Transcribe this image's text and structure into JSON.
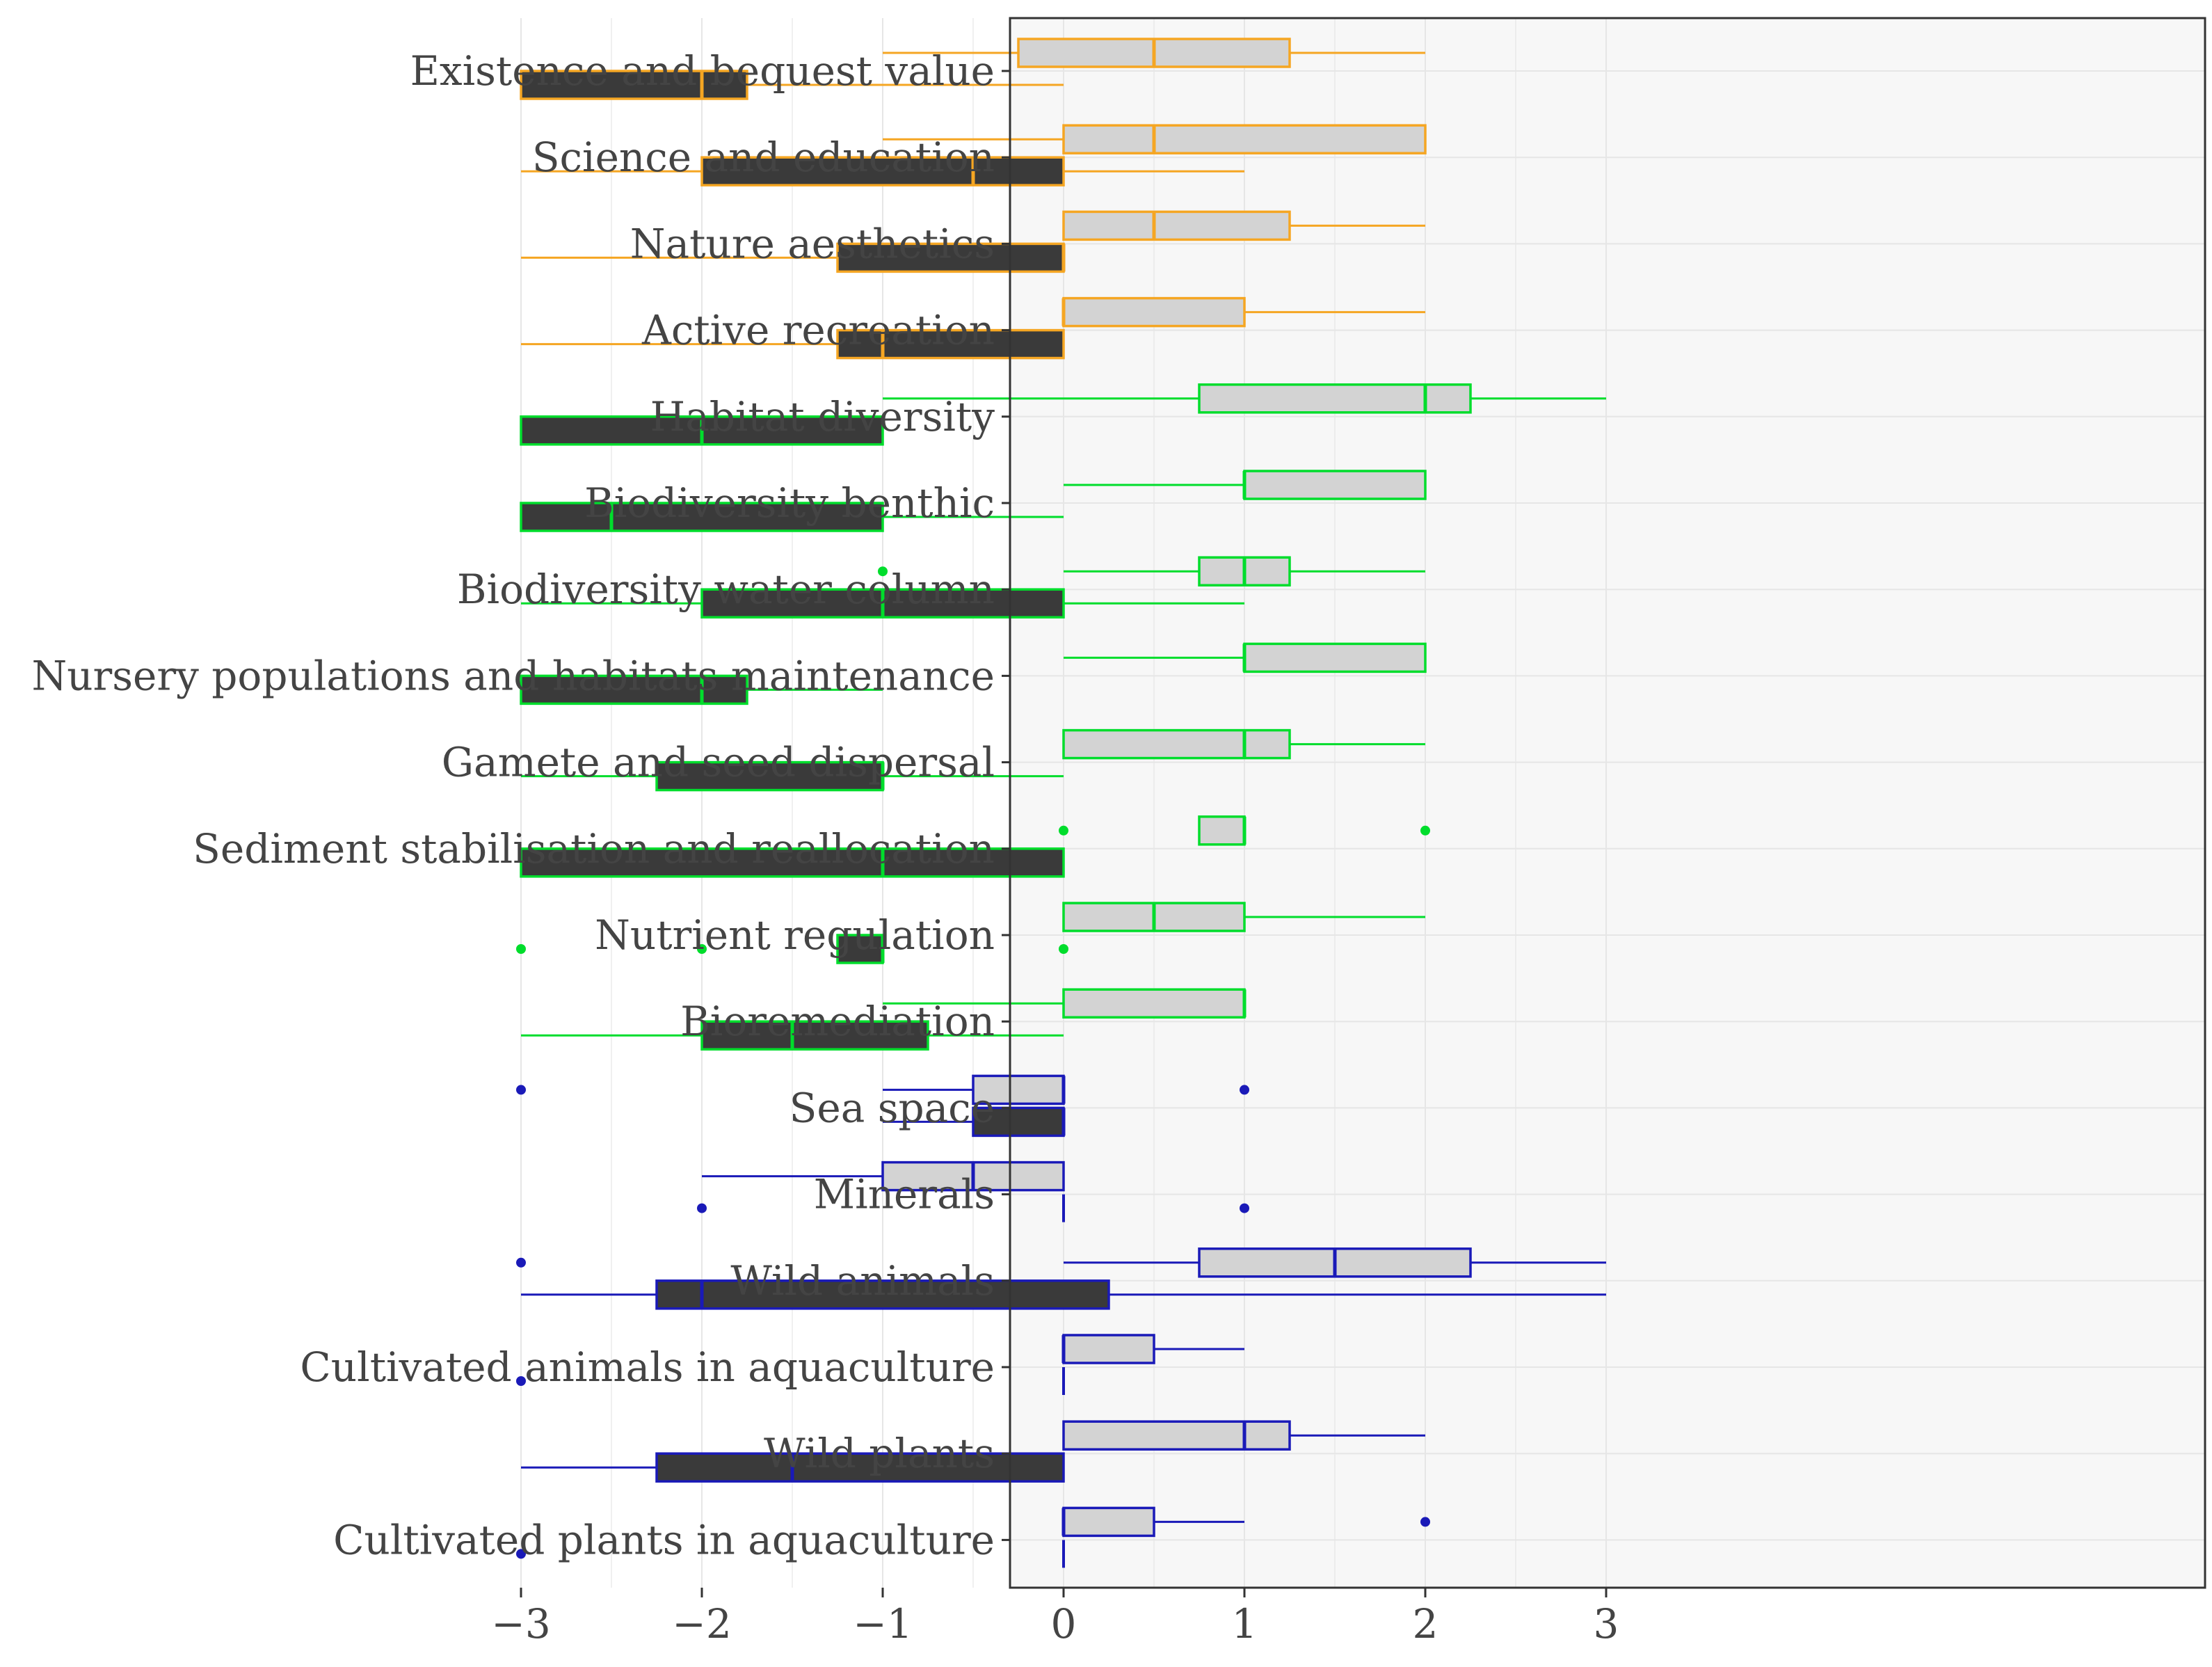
{
  "colors": {
    "panel_bg": "#f7f7f7",
    "grid": "#e6e6e6",
    "frame": "#333333",
    "axis_text": "#444444",
    "positive_fill": "#d3d3d3",
    "negative_fill": "#3a3a3a",
    "group_colors": {
      "cultural": "#f5a623",
      "regulating": "#00dd2c",
      "provisioning": "#1a1ab8"
    }
  },
  "chart_data": {
    "type": "boxplot",
    "orientation": "horizontal",
    "xlim": [
      -3.3,
      3.3
    ],
    "x_ticks": [
      -3,
      -2,
      -1,
      0,
      1,
      2,
      3
    ],
    "x_tick_labels": [
      "−3",
      "−2",
      "−1",
      "0",
      "1",
      "2",
      "3"
    ],
    "grid": true,
    "categories": [
      "Existence and bequest value",
      "Science and education",
      "Nature aesthetics",
      "Active recreation",
      "Habitat diversity",
      "Biodiversity benthic",
      "Biodiversity water column",
      "Nursery populations and habitats maintenance",
      "Gamete and seed dispersal",
      "Sediment stabilisation and reallocation",
      "Nutrient regulation",
      "Bioremediation",
      "Sea space",
      "Minerals",
      "Wild animals",
      "Cultivated animals in aquaculture",
      "Wild plants",
      "Cultivated plants in aquaculture"
    ],
    "groups": [
      "cultural",
      "cultural",
      "cultural",
      "cultural",
      "regulating",
      "regulating",
      "regulating",
      "regulating",
      "regulating",
      "regulating",
      "regulating",
      "regulating",
      "provisioning",
      "provisioning",
      "provisioning",
      "provisioning",
      "provisioning",
      "provisioning"
    ],
    "positive_boxes": [
      {
        "wmin": -1,
        "q1": -0.25,
        "median": 0.5,
        "q3": 1.25,
        "wmax": 2,
        "outliers": []
      },
      {
        "wmin": -1,
        "q1": 0,
        "median": 0.5,
        "q3": 2,
        "wmax": 2,
        "outliers": []
      },
      {
        "wmin": 0,
        "q1": 0,
        "median": 0.5,
        "q3": 1.25,
        "wmax": 2,
        "outliers": []
      },
      {
        "wmin": 0,
        "q1": 0,
        "median": 0,
        "q3": 1,
        "wmax": 2,
        "outliers": []
      },
      {
        "wmin": -1,
        "q1": 0.75,
        "median": 2,
        "q3": 2.25,
        "wmax": 3,
        "outliers": []
      },
      {
        "wmin": 0,
        "q1": 1,
        "median": 1,
        "q3": 2,
        "wmax": 2,
        "outliers": []
      },
      {
        "wmin": 0,
        "q1": 0.75,
        "median": 1,
        "q3": 1.25,
        "wmax": 2,
        "outliers": [
          -1
        ]
      },
      {
        "wmin": 0,
        "q1": 1,
        "median": 1,
        "q3": 2,
        "wmax": 2,
        "outliers": []
      },
      {
        "wmin": 0,
        "q1": 0,
        "median": 1,
        "q3": 1.25,
        "wmax": 2,
        "outliers": []
      },
      {
        "wmin": 0.75,
        "q1": 0.75,
        "median": 1,
        "q3": 1,
        "wmax": 1,
        "outliers": [
          0,
          2
        ]
      },
      {
        "wmin": 0,
        "q1": 0,
        "median": 0.5,
        "q3": 1,
        "wmax": 2,
        "outliers": []
      },
      {
        "wmin": -1,
        "q1": 0,
        "median": 1,
        "q3": 1,
        "wmax": 1,
        "outliers": []
      },
      {
        "wmin": -1,
        "q1": -0.5,
        "median": 0,
        "q3": 0,
        "wmax": 0,
        "outliers": [
          -3,
          1
        ]
      },
      {
        "wmin": -2,
        "q1": -1,
        "median": -0.5,
        "q3": 0,
        "wmax": 0,
        "outliers": []
      },
      {
        "wmin": 0,
        "q1": 0.75,
        "median": 1.5,
        "q3": 2.25,
        "wmax": 3,
        "outliers": [
          -3
        ]
      },
      {
        "wmin": 0,
        "q1": 0,
        "median": 0,
        "q3": 0.5,
        "wmax": 1,
        "outliers": []
      },
      {
        "wmin": 0,
        "q1": 0,
        "median": 1,
        "q3": 1.25,
        "wmax": 2,
        "outliers": []
      },
      {
        "wmin": 0,
        "q1": 0,
        "median": 0,
        "q3": 0.5,
        "wmax": 1,
        "outliers": [
          2
        ]
      }
    ],
    "negative_boxes": [
      {
        "wmin": -3,
        "q1": -3,
        "median": -2,
        "q3": -1.75,
        "wmax": 0,
        "outliers": []
      },
      {
        "wmin": -3,
        "q1": -2,
        "median": -0.5,
        "q3": 0,
        "wmax": 1,
        "outliers": []
      },
      {
        "wmin": -3,
        "q1": -1.25,
        "median": 0,
        "q3": 0,
        "wmax": 0,
        "outliers": []
      },
      {
        "wmin": -3,
        "q1": -1.25,
        "median": -1,
        "q3": 0,
        "wmax": 0,
        "outliers": []
      },
      {
        "wmin": -3,
        "q1": -3,
        "median": -2,
        "q3": -1,
        "wmax": -1,
        "outliers": []
      },
      {
        "wmin": -3,
        "q1": -3,
        "median": -2.5,
        "q3": -1,
        "wmax": 0,
        "outliers": []
      },
      {
        "wmin": -3,
        "q1": -2,
        "median": -1,
        "q3": 0,
        "wmax": 1,
        "outliers": []
      },
      {
        "wmin": -3,
        "q1": -3,
        "median": -2,
        "q3": -1.75,
        "wmax": -1,
        "outliers": []
      },
      {
        "wmin": -3,
        "q1": -2.25,
        "median": -1,
        "q3": -1,
        "wmax": 0,
        "outliers": []
      },
      {
        "wmin": -3,
        "q1": -3,
        "median": -1,
        "q3": 0,
        "wmax": 0,
        "outliers": []
      },
      {
        "wmin": -1.25,
        "q1": -1.25,
        "median": -1,
        "q3": -1,
        "wmax": -1,
        "outliers": [
          -3,
          -2,
          0
        ]
      },
      {
        "wmin": -3,
        "q1": -2,
        "median": -1.5,
        "q3": -0.75,
        "wmax": 0,
        "outliers": []
      },
      {
        "wmin": -1,
        "q1": -0.5,
        "median": 0,
        "q3": 0,
        "wmax": 0,
        "outliers": []
      },
      {
        "wmin": 0,
        "q1": 0,
        "median": 0,
        "q3": 0,
        "wmax": 0,
        "outliers": [
          -2,
          1
        ]
      },
      {
        "wmin": -3,
        "q1": -2.25,
        "median": -2,
        "q3": 0.25,
        "wmax": 3,
        "outliers": []
      },
      {
        "wmin": 0,
        "q1": 0,
        "median": 0,
        "q3": 0,
        "wmax": 0,
        "outliers": [
          -3
        ]
      },
      {
        "wmin": -3,
        "q1": -2.25,
        "median": -1.5,
        "q3": 0,
        "wmax": 0,
        "outliers": []
      },
      {
        "wmin": 0,
        "q1": 0,
        "median": 0,
        "q3": 0,
        "wmax": 0,
        "outliers": [
          -3
        ]
      }
    ]
  }
}
